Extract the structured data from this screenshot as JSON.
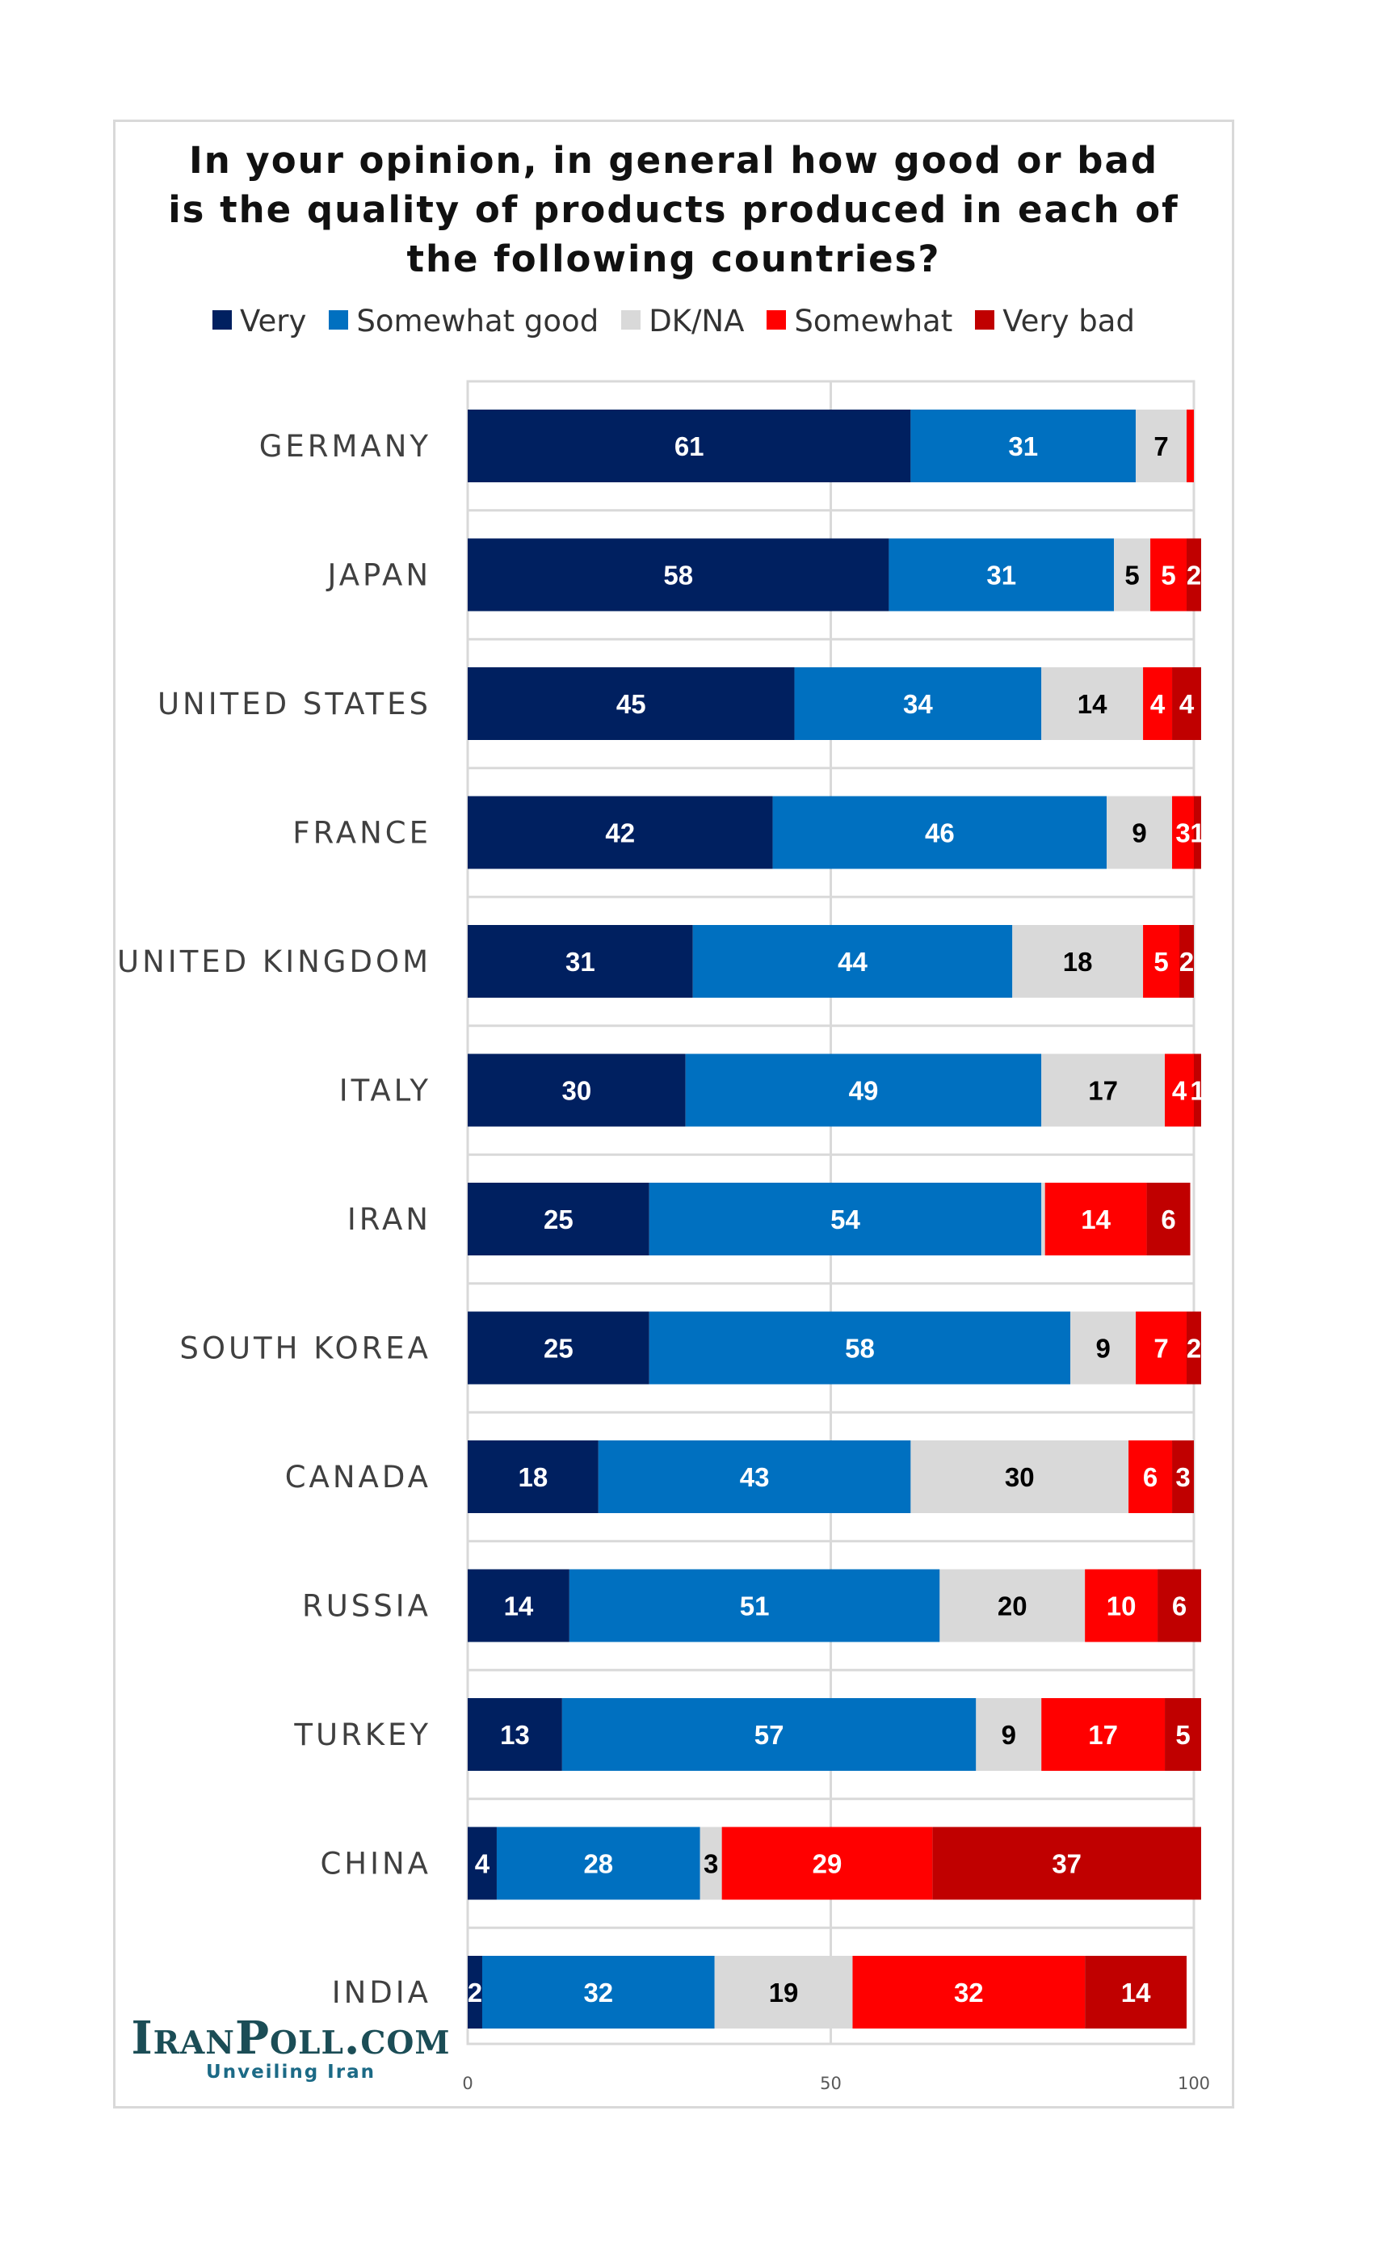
{
  "title_lines": [
    "In your opinion, in general how good or bad",
    "is the quality of products produced in each of",
    "the following countries?"
  ],
  "brand": {
    "logo": "IranPoll.com",
    "tagline": "Unveiling Iran"
  },
  "chart_data": {
    "type": "bar",
    "orientation": "horizontal",
    "stacked": true,
    "title": "In your opinion, in general how good or bad is the quality of products produced in each of the following countries?",
    "categories": [
      "GERMANY",
      "JAPAN",
      "UNITED STATES",
      "FRANCE",
      "UNITED KINGDOM",
      "ITALY",
      "IRAN",
      "SOUTH KOREA",
      "CANADA",
      "RUSSIA",
      "TURKEY",
      "CHINA",
      "INDIA"
    ],
    "series": [
      {
        "name": "Very",
        "color": "#002060",
        "text_color": "#ffffff",
        "values": [
          61,
          58,
          45,
          42,
          31,
          30,
          25,
          25,
          18,
          14,
          13,
          4,
          2
        ]
      },
      {
        "name": "Somewhat good",
        "color": "#0070c0",
        "text_color": "#ffffff",
        "values": [
          31,
          31,
          34,
          46,
          44,
          49,
          54,
          58,
          43,
          51,
          57,
          28,
          32
        ]
      },
      {
        "name": "DK/NA",
        "color": "#d9d9d9",
        "text_color": "#000000",
        "values": [
          7,
          5,
          14,
          9,
          18,
          17,
          0.5,
          9,
          30,
          20,
          9,
          3,
          19
        ],
        "labels": [
          "7",
          "5",
          "14",
          "9",
          "18",
          "17",
          "",
          "9",
          "30",
          "20",
          "9",
          "3",
          "19"
        ]
      },
      {
        "name": "Somewhat",
        "color": "#ff0000",
        "text_color": "#ffffff",
        "values": [
          1,
          5,
          4,
          3,
          5,
          4,
          14,
          7,
          6,
          10,
          17,
          29,
          32
        ],
        "labels": [
          "",
          "5",
          "4",
          "3",
          "5",
          "4",
          "14",
          "7",
          "6",
          "10",
          "17",
          "29",
          "32"
        ]
      },
      {
        "name": "Very bad",
        "color": "#c00000",
        "text_color": "#ffffff",
        "values": [
          0,
          2,
          4,
          1,
          2,
          1,
          6,
          2,
          3,
          6,
          5,
          37,
          14
        ],
        "labels": [
          "",
          "2",
          "4",
          "1",
          "2",
          "1",
          "6",
          "2",
          "3",
          "6",
          "5",
          "37",
          "14"
        ]
      }
    ],
    "xlim": [
      0,
      100
    ],
    "xticks": [
      0,
      50,
      100
    ],
    "grid": true,
    "legend_position": "top"
  }
}
